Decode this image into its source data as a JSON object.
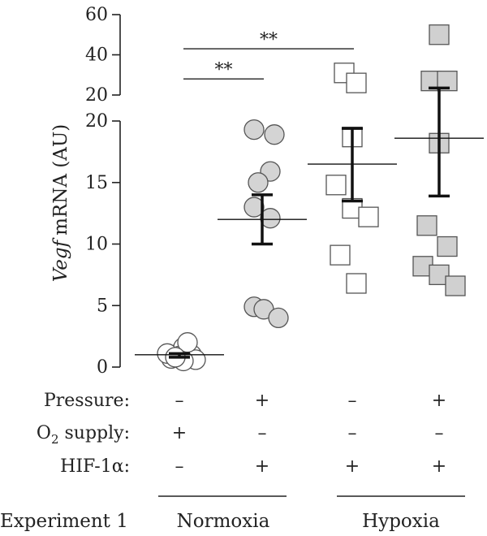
{
  "chart_data": {
    "type": "scatter",
    "ylabel_italic": "Vegf",
    "ylabel_rest": "mRNA (AU)",
    "y_axis_lower": {
      "range": [
        0,
        20
      ],
      "ticks": [
        "0",
        "5",
        "10",
        "15",
        "20"
      ]
    },
    "y_axis_upper": {
      "range": [
        20,
        60
      ],
      "ticks": [
        "20",
        "40",
        "60"
      ]
    },
    "groups": [
      {
        "marker": "circle",
        "fill": "#ffffff",
        "points": [
          [
            -0.05,
            1.0
          ],
          [
            0.05,
            1.6
          ],
          [
            0.0,
            0.9
          ],
          [
            -0.1,
            0.7
          ],
          [
            0.15,
            1.0
          ],
          [
            -0.15,
            1.1
          ],
          [
            0.2,
            0.6
          ],
          [
            0.05,
            0.5
          ],
          [
            0.1,
            2.0
          ],
          [
            -0.05,
            0.8
          ]
        ],
        "mean": 1.0,
        "error": [
          0.8,
          1.1
        ]
      },
      {
        "marker": "circle",
        "fill": "#d4d4d4",
        "points": [
          [
            -0.1,
            19.3
          ],
          [
            0.15,
            18.9
          ],
          [
            0.1,
            15.9
          ],
          [
            -0.05,
            15.0
          ],
          [
            -0.1,
            13.0
          ],
          [
            0.1,
            12.1
          ],
          [
            -0.1,
            4.9
          ],
          [
            0.02,
            4.7
          ],
          [
            0.2,
            4.0
          ]
        ],
        "mean": 12.0,
        "error": [
          10.0,
          14.0
        ]
      },
      {
        "marker": "square",
        "fill": "#ffffff",
        "points": [
          [
            -0.1,
            31
          ],
          [
            0.05,
            26
          ],
          [
            0.0,
            18.7
          ],
          [
            -0.2,
            14.8
          ],
          [
            0.0,
            12.9
          ],
          [
            0.2,
            12.2
          ],
          [
            -0.15,
            9.1
          ],
          [
            0.05,
            6.8
          ]
        ],
        "mean": 16.5,
        "error": [
          13.5,
          19.4
        ]
      },
      {
        "marker": "square",
        "fill": "#d0d0d0",
        "points": [
          [
            0.0,
            50
          ],
          [
            -0.1,
            27
          ],
          [
            0.1,
            27
          ],
          [
            0.0,
            18.2
          ],
          [
            -0.15,
            11.5
          ],
          [
            0.1,
            9.8
          ],
          [
            -0.2,
            8.2
          ],
          [
            0.0,
            7.5
          ],
          [
            0.2,
            6.6
          ]
        ],
        "mean": 18.6,
        "error": [
          13.9,
          23.5
        ]
      }
    ],
    "significance": [
      {
        "label": "**",
        "from": 0,
        "to": 1,
        "y": 28
      },
      {
        "label": "**",
        "from": 0,
        "to": 2,
        "y": 43
      }
    ]
  },
  "conditions": {
    "pressure": {
      "label": "Pressure:",
      "values": [
        "–",
        "+",
        "–",
        "+"
      ]
    },
    "o2": {
      "label_main": "O",
      "label_sub": "2",
      "label_rest": " supply:",
      "values": [
        "+",
        "–",
        "–",
        "–"
      ]
    },
    "hif": {
      "label": "HIF-1α:",
      "values": [
        "–",
        "+",
        "+",
        "+"
      ]
    }
  },
  "experiment_label": "Experiment 1",
  "group_labels": [
    "Normoxia",
    "Hypoxia"
  ]
}
